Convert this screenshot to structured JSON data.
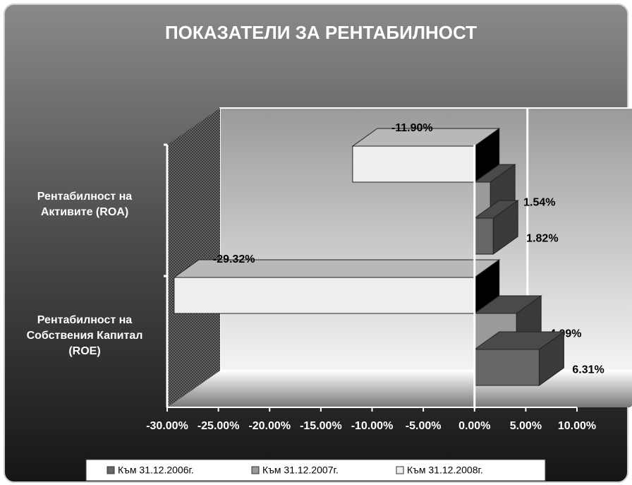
{
  "chart_data": {
    "type": "bar3d_horizontal",
    "title": "ПОКАЗАТЕЛИ ЗА РЕНТАБИЛНОСТ",
    "categories": [
      "Рентабилност на Активите (ROA)",
      "Рентабилност на Собствения Капитал (ROE)"
    ],
    "series": [
      {
        "name": "Към 31.12.2006г.",
        "color": "#666666",
        "values": [
          1.82,
          6.31
        ],
        "value_labels": [
          "1.82%",
          "6.31%"
        ]
      },
      {
        "name": "Към 31.12.2007г.",
        "color": "#9a9a9a",
        "values": [
          1.54,
          4.09
        ],
        "value_labels": [
          "1.54%",
          "4.09%"
        ]
      },
      {
        "name": "Към 31.12.2008г.",
        "color": "#eeeeee",
        "values": [
          -11.9,
          -29.32
        ],
        "value_labels": [
          "-11.90%",
          "-29.32%"
        ]
      }
    ],
    "xlim": [
      -30,
      10
    ],
    "xticks": [
      {
        "value": -30,
        "label": "-30.00%"
      },
      {
        "value": -25,
        "label": "-25.00%"
      },
      {
        "value": -20,
        "label": "-20.00%"
      },
      {
        "value": -15,
        "label": "-15.00%"
      },
      {
        "value": -10,
        "label": "-10.00%"
      },
      {
        "value": -5,
        "label": "-5.00%"
      },
      {
        "value": 0,
        "label": "0.00%"
      },
      {
        "value": 5,
        "label": "5.00%"
      },
      {
        "value": 10,
        "label": "10.00%"
      }
    ],
    "legend": "bottom"
  }
}
